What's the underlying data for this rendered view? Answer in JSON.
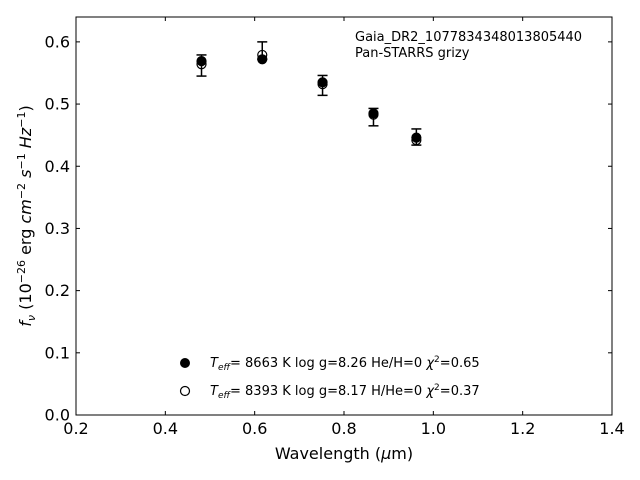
{
  "chart_data": {
    "type": "scatter",
    "xlabel": "Wavelength (μm)",
    "ylabel": "f_ν (10^-26 erg cm^-2 s^-1 Hz^-1)",
    "xlim": [
      0.2,
      1.4
    ],
    "ylim": [
      0.0,
      0.64
    ],
    "xticks": [
      "0.2",
      "0.4",
      "0.6",
      "0.8",
      "1.0",
      "1.2",
      "1.4"
    ],
    "yticks": [
      "0.0",
      "0.1",
      "0.2",
      "0.3",
      "0.4",
      "0.5",
      "0.6"
    ],
    "annotations": [
      "Gaia_DR2_1077834348013805440",
      "Pan-STARRS grizy"
    ],
    "legend_position": "bottom-center",
    "observed": {
      "x": [
        0.481,
        0.617,
        0.752,
        0.866,
        0.962
      ],
      "y": [
        0.562,
        0.586,
        0.53,
        0.479,
        0.447
      ],
      "err": [
        0.017,
        0.014,
        0.016,
        0.014,
        0.013
      ]
    },
    "series": [
      {
        "name": "T_eff= 8663 K  log g=8.26  He/H=0  χ²=0.65",
        "marker": "filled",
        "x": [
          0.481,
          0.617,
          0.752,
          0.866,
          0.962
        ],
        "y": [
          0.569,
          0.572,
          0.535,
          0.485,
          0.446
        ]
      },
      {
        "name": "T_eff= 8393 K  log g=8.17  H/He=0  χ²=0.37",
        "marker": "open",
        "x": [
          0.481,
          0.617,
          0.752,
          0.866,
          0.962
        ],
        "y": [
          0.564,
          0.579,
          0.532,
          0.483,
          0.442
        ]
      }
    ],
    "legend": [
      {
        "teff": "8663",
        "logg": "8.26",
        "comp_label": "He/H=0",
        "chi2": "0.65"
      },
      {
        "teff": "8393",
        "logg": "8.17",
        "comp_label": "H/He=0",
        "chi2": "0.37"
      }
    ]
  }
}
